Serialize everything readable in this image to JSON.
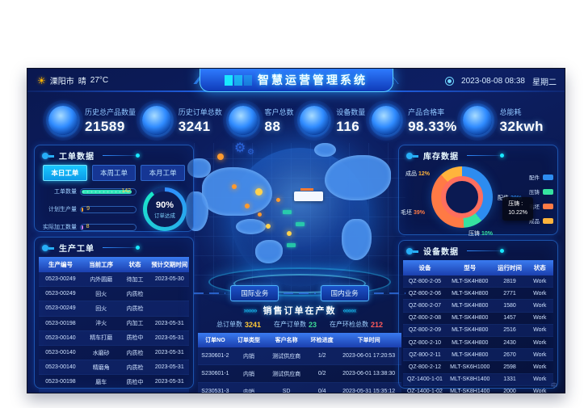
{
  "header": {
    "city": "溧阳市",
    "weather": "晴",
    "temperature": "27°C",
    "title": "智慧运营管理系统",
    "date": "2023-08-08 08:38",
    "weekday": "星期二"
  },
  "kpis": [
    {
      "label": "历史总产品数量",
      "value": "21589"
    },
    {
      "label": "历史订单总数",
      "value": "3241"
    },
    {
      "label": "客户总数",
      "value": "88"
    },
    {
      "label": "设备数量",
      "value": "116"
    },
    {
      "label": "产品合格率",
      "value": "98.33%"
    },
    {
      "label": "总能耗",
      "value": "32kwh"
    }
  ],
  "work_order_panel": {
    "title": "工单数据",
    "tabs": [
      {
        "label": "本日工单",
        "active": true
      },
      {
        "label": "本周工单",
        "active": false
      },
      {
        "label": "本月工单",
        "active": false
      }
    ],
    "chart_data": {
      "type": "bar",
      "series": [
        {
          "name": "工单数量",
          "value": 142,
          "max": 150,
          "color": "#2fe3b9"
        },
        {
          "name": "计划生产量",
          "value": 9,
          "max": 150,
          "color": "#ffa22e"
        },
        {
          "name": "实际加工数量",
          "value": 8,
          "max": 150,
          "color": "#c478f2"
        }
      ]
    },
    "gauge": {
      "value": "90%",
      "percent": 90,
      "label": "订单达成"
    }
  },
  "production_panel": {
    "title": "生产工单",
    "columns": [
      "生产编号",
      "当前工序",
      "状态",
      "预计交期时间"
    ],
    "rows": [
      [
        "0523-00249",
        "内外圆磨",
        "待加工",
        "2023-05-30"
      ],
      [
        "0523-00249",
        "回火",
        "内质检",
        ""
      ],
      [
        "0523-00249",
        "回火",
        "内质检",
        ""
      ],
      [
        "0523-00198",
        "淬火",
        "内加工",
        "2023-05-31"
      ],
      [
        "0523-00140",
        "精车打磨",
        "质检中",
        "2023-05-31"
      ],
      [
        "0523-00140",
        "水磨砂",
        "内质检",
        "2023-05-31"
      ],
      [
        "0523-00140",
        "精磨角",
        "内质检",
        "2023-05-31"
      ],
      [
        "0523-00198",
        "磨车",
        "质检中",
        "2023-05-31"
      ],
      [
        "0523-00243",
        "回火",
        "内质检",
        ""
      ],
      [
        "0523-00245",
        "回火",
        "已完成",
        "2023-05-30"
      ]
    ]
  },
  "inventory_panel": {
    "title": "库存数据",
    "chart_data": {
      "type": "pie",
      "segments": [
        {
          "label": "配件",
          "value": 39,
          "color": "#2d8cf0"
        },
        {
          "label": "压铸",
          "value": 10,
          "color": "#36e2a0"
        },
        {
          "label": "毛坯",
          "value": 39,
          "color": "#ff7a45"
        },
        {
          "label": "成品",
          "value": 12,
          "color": "#ffb43c"
        }
      ]
    },
    "tooltip": {
      "label": "压铸 :",
      "value": "10.22%"
    }
  },
  "device_panel": {
    "title": "设备数据",
    "columns": [
      "设备",
      "型号",
      "运行时间",
      "状态"
    ],
    "rows": [
      [
        "QZ-800-2-05",
        "MLT-SK4H800",
        "2819",
        "Work"
      ],
      [
        "QZ-800-2-06",
        "MLT-SK4H800",
        "2771",
        "Work"
      ],
      [
        "QZ-800-2-07",
        "MLT-SK4H800",
        "1580",
        "Work"
      ],
      [
        "QZ-800-2-08",
        "MLT-SK4H800",
        "1457",
        "Work"
      ],
      [
        "QZ-800-2-09",
        "MLT-SK4H800",
        "2516",
        "Work"
      ],
      [
        "QZ-800-2-10",
        "MLT-SK4H800",
        "2430",
        "Work"
      ],
      [
        "QZ-800-2-11",
        "MLT-SK4H800",
        "2670",
        "Work"
      ],
      [
        "QZ-800-2-12",
        "MLT-SK6H1000",
        "2598",
        "Work"
      ],
      [
        "QZ-1400-1-01",
        "MLT-SK8H1400",
        "1331",
        "Work"
      ],
      [
        "QZ-1400-1-02",
        "MLT-SK8H1400",
        "2000",
        "Work"
      ]
    ]
  },
  "sales_panel": {
    "intl_button": "国际业务",
    "domestic_button": "国内业务",
    "title": "销售订单在产数",
    "arrows_left": "»»»»",
    "arrows_right": "««««",
    "stats": [
      {
        "label": "总订单数",
        "value": "3241",
        "color": "#ffc937"
      },
      {
        "label": "在产订单数",
        "value": "23",
        "color": "#3ddc97"
      },
      {
        "label": "在产环检总数",
        "value": "212",
        "color": "#ff5a5a"
      }
    ],
    "columns": [
      "订单NO",
      "订单类型",
      "客户名称",
      "环检进度",
      "下单时间"
    ],
    "rows": [
      [
        "S230601-2",
        "内销",
        "测试供应商",
        "1/2",
        "2023-06-01 17:20:53"
      ],
      [
        "S230601-1",
        "内销",
        "测试供应商",
        "0/2",
        "2023-06-01 13:38:30"
      ],
      [
        "S230531-3",
        "内销",
        "SD",
        "0/4",
        "2023-05-31 15:35:12"
      ]
    ]
  },
  "footer": {
    "watermark": "中"
  }
}
